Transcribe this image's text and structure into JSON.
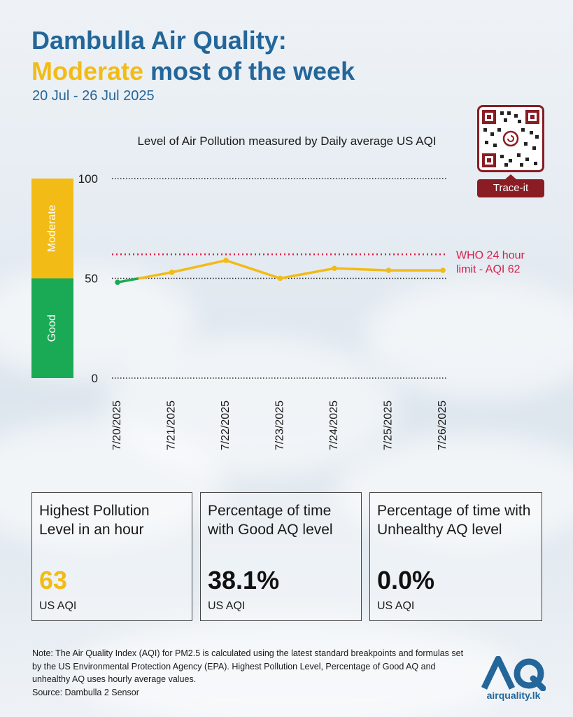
{
  "header": {
    "title_line1": "Dambulla Air Quality:",
    "title_highlight": "Moderate",
    "title_line2_rest": " most of the week",
    "subtitle": "20 Jul - 26 Jul 2025"
  },
  "colors": {
    "title_blue": "#23669a",
    "moderate_yellow": "#f2bb16",
    "good_green": "#1aaa55",
    "who_red": "#d6204a",
    "qr_maroon": "#8a1c24"
  },
  "qr": {
    "label": "Trace-it"
  },
  "chart_data": {
    "type": "line",
    "title": "Level of Air Pollution measured by Daily average US AQI",
    "categories": [
      "7/20/2025",
      "7/21/2025",
      "7/22/2025",
      "7/23/2025",
      "7/24/2025",
      "7/25/2025",
      "7/26/2025"
    ],
    "values": [
      48,
      53,
      59,
      50,
      55,
      54,
      54
    ],
    "ylim": [
      0,
      100
    ],
    "yticks": [
      "0",
      "50",
      "100"
    ],
    "bands": [
      {
        "label": "Good",
        "from": 0,
        "to": 50,
        "color": "#1aaa55"
      },
      {
        "label": "Moderate",
        "from": 50,
        "to": 100,
        "color": "#f2bb16"
      }
    ],
    "reference_line": {
      "value": 62,
      "label_line1": "WHO 24 hour",
      "label_line2": "limit - AQI 62"
    }
  },
  "cards": [
    {
      "label": "Highest Pollution Level in an hour",
      "value": "63",
      "unit": "US AQI"
    },
    {
      "label": "Percentage of time with Good AQ level",
      "value": "38.1%",
      "unit": "US AQI"
    },
    {
      "label": "Percentage of time with Unhealthy AQ level",
      "value": "0.0%",
      "unit": "US AQI"
    }
  ],
  "footer": {
    "note": "Note: The Air Quality Index (AQI) for PM2.5 is calculated using the latest standard breakpoints and formulas set by the US Environmental Protection Agency (EPA). Highest Pollution Level, Percentage of Good AQ and unhealthy AQ uses hourly average values.",
    "source": "Source: Dambulla 2 Sensor",
    "logo_text": "airquality.lk"
  }
}
